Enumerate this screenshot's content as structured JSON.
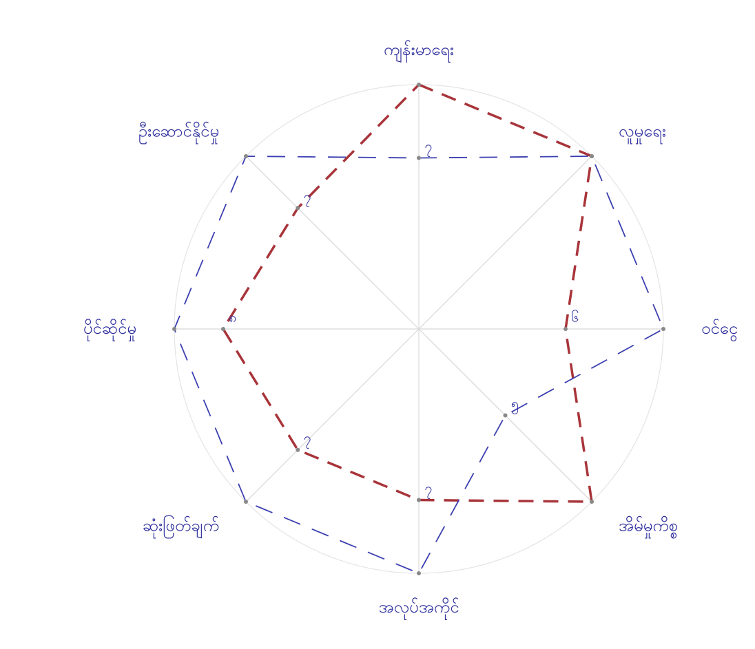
{
  "chart_data": {
    "type": "radar",
    "categories": [
      "ကျန်းမာရေး",
      "လူမှုရေး",
      "ဝင်ငွေ",
      "အိမ်မှုကိစ္စ",
      "အလုပ်အကိုင်",
      "ဆုံးဖြတ်ချက်",
      "ပိုင်ဆိုင်မှု",
      "ဦးဆောင်နိုင်မှု"
    ],
    "rlim": [
      0,
      10
    ],
    "grid": true,
    "series": [
      {
        "color": "#a8343a",
        "values": [
          10,
          10,
          6,
          10,
          7,
          7,
          8,
          7
        ],
        "value_labels": [
          null,
          null,
          "၆",
          null,
          "၇",
          "၇",
          "၈",
          "၇"
        ]
      },
      {
        "color": "#3b3fb0",
        "values": [
          7,
          10,
          10,
          5,
          10,
          10,
          10,
          10
        ],
        "value_labels": [
          "၇",
          null,
          null,
          "၅",
          null,
          null,
          null,
          null
        ]
      }
    ]
  }
}
